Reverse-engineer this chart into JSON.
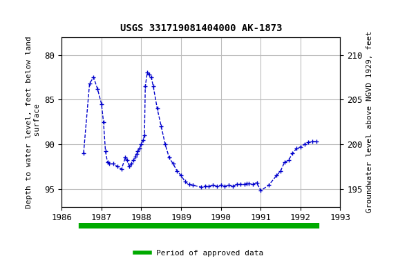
{
  "title": "USGS 331719081404000 AK-1873",
  "ylabel_left": "Depth to water level, feet below land\n surface",
  "ylabel_right": "Groundwater level above NGVD 1929, feet",
  "xlim": [
    1986,
    1993
  ],
  "ylim_left": [
    97,
    78
  ],
  "ylim_right": [
    193,
    212
  ],
  "yticks_left": [
    80,
    85,
    90,
    95
  ],
  "yticks_right": [
    195,
    200,
    205,
    210
  ],
  "xticks": [
    1986,
    1987,
    1988,
    1989,
    1990,
    1991,
    1992,
    1993
  ],
  "line_color": "#0000CC",
  "marker": "+",
  "linestyle": "--",
  "grid_color": "#bbbbbb",
  "background_color": "#ffffff",
  "approved_bar_color": "#00aa00",
  "legend_label": "Period of approved data",
  "approved_x_start": 1986.5,
  "approved_x_end": 1992.4,
  "x_data": [
    1986.55,
    1986.7,
    1986.8,
    1986.9,
    1987.0,
    1987.05,
    1987.1,
    1987.15,
    1987.2,
    1987.3,
    1987.4,
    1987.5,
    1987.6,
    1987.65,
    1987.7,
    1987.75,
    1987.8,
    1987.85,
    1987.88,
    1987.91,
    1987.95,
    1988.0,
    1988.05,
    1988.08,
    1988.1,
    1988.15,
    1988.2,
    1988.25,
    1988.3,
    1988.4,
    1988.5,
    1988.6,
    1988.7,
    1988.8,
    1988.9,
    1989.0,
    1989.1,
    1989.2,
    1989.3,
    1989.5,
    1989.6,
    1989.7,
    1989.8,
    1989.9,
    1990.0,
    1990.1,
    1990.2,
    1990.3,
    1990.4,
    1990.5,
    1990.6,
    1990.65,
    1990.7,
    1990.8,
    1990.9,
    1991.0,
    1991.2,
    1991.4,
    1991.5,
    1991.6,
    1991.7,
    1991.8,
    1991.9,
    1992.0,
    1992.1,
    1992.2,
    1992.3,
    1992.4
  ],
  "y_data": [
    91.0,
    83.2,
    82.5,
    83.8,
    85.5,
    87.5,
    90.8,
    92.0,
    92.2,
    92.2,
    92.5,
    92.8,
    91.5,
    91.8,
    92.5,
    92.2,
    91.8,
    91.4,
    91.1,
    90.8,
    90.5,
    90.0,
    89.5,
    89.0,
    83.5,
    82.0,
    82.2,
    82.5,
    83.5,
    86.0,
    88.0,
    90.0,
    91.5,
    92.2,
    93.0,
    93.5,
    94.2,
    94.5,
    94.6,
    94.8,
    94.7,
    94.7,
    94.6,
    94.7,
    94.6,
    94.7,
    94.6,
    94.7,
    94.5,
    94.5,
    94.5,
    94.4,
    94.4,
    94.5,
    94.3,
    95.2,
    94.6,
    93.5,
    93.0,
    92.0,
    91.8,
    91.0,
    90.5,
    90.3,
    90.0,
    89.8,
    89.7,
    89.7
  ]
}
